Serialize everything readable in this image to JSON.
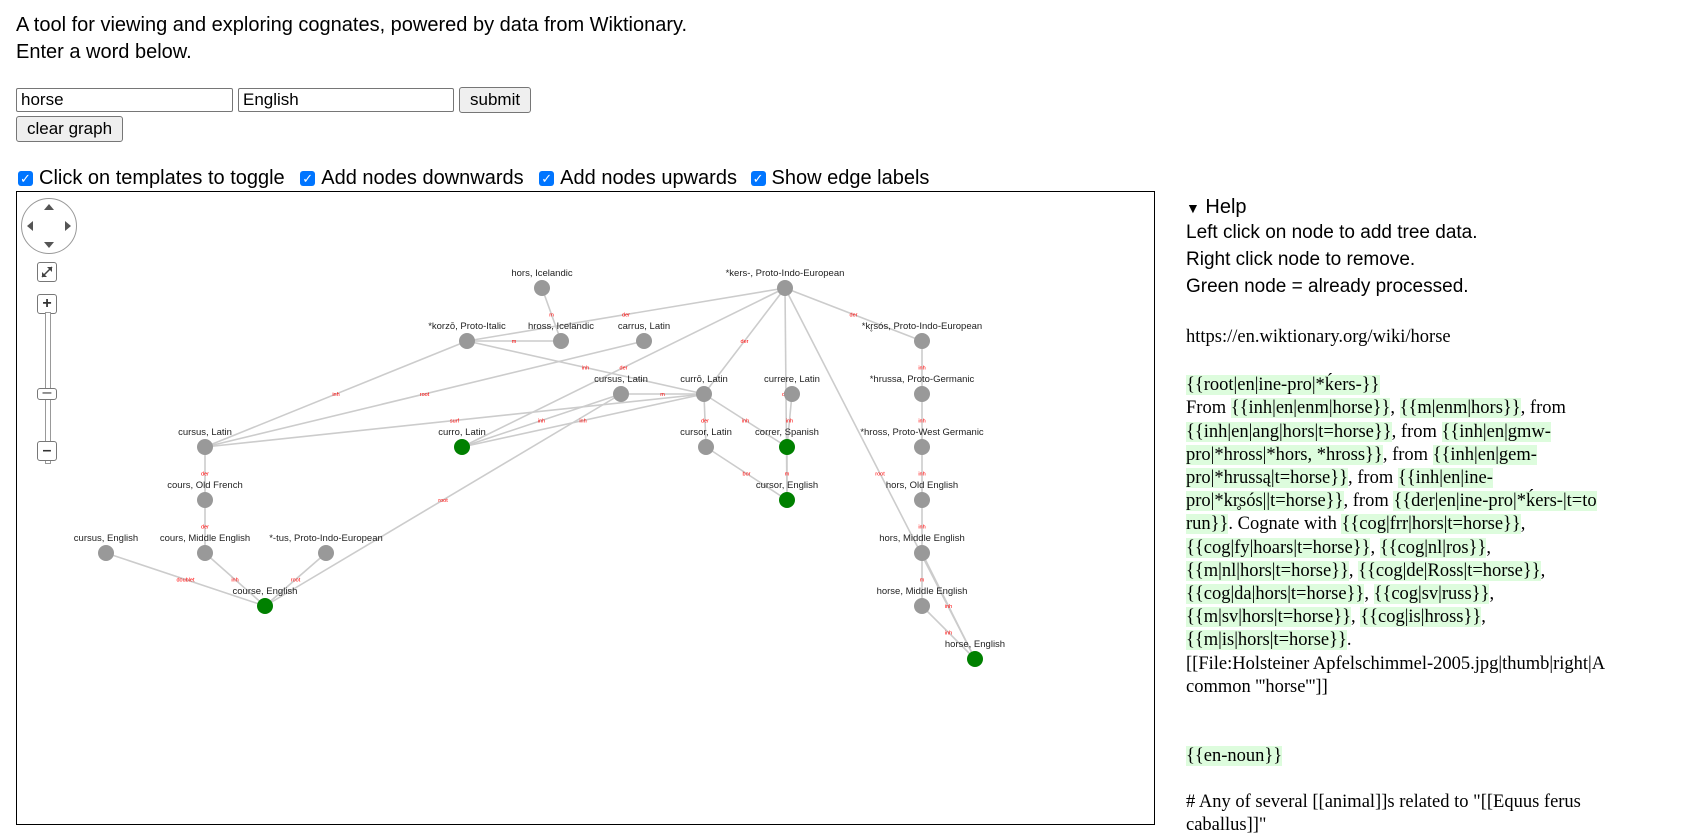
{
  "intro": {
    "line1": "A tool for viewing and exploring cognates, powered by data from Wiktionary.",
    "line2": "Enter a word below."
  },
  "form": {
    "word_value": "horse",
    "language_value": "English",
    "submit_label": "submit",
    "clear_label": "clear graph"
  },
  "options": [
    {
      "label": "Click on templates to toggle",
      "checked": true
    },
    {
      "label": "Add nodes downwards",
      "checked": true
    },
    {
      "label": "Add nodes upwards",
      "checked": true
    },
    {
      "label": "Show edge labels",
      "checked": true
    }
  ],
  "colors": {
    "processed": "#008000",
    "unprocessed": "#999999",
    "edge": "#cccccc",
    "edge_label": "#ff0000",
    "template_bg": "#ddfcdd",
    "checkbox": "#0075ff"
  },
  "graph": {
    "nodes": [
      {
        "label": "hors, Icelandic",
        "processed": false
      },
      {
        "label": "*kers-, Proto-Indo-European",
        "processed": false
      },
      {
        "label": "*korzō, Proto-Italic",
        "processed": false
      },
      {
        "label": "hross, Icelandic",
        "processed": false
      },
      {
        "label": "carrus, Latin",
        "processed": false
      },
      {
        "label": "*kr̥sós, Proto-Indo-European",
        "processed": false
      },
      {
        "label": "cursus, Latin",
        "processed": false
      },
      {
        "label": "currō, Latin",
        "processed": false
      },
      {
        "label": "currere, Latin",
        "processed": false
      },
      {
        "label": "*hrussa, Proto-Germanic",
        "processed": false
      },
      {
        "label": "cursus, Latin",
        "processed": false
      },
      {
        "label": "curro, Latin",
        "processed": true
      },
      {
        "label": "cursor, Latin",
        "processed": false
      },
      {
        "label": "correr, Spanish",
        "processed": true
      },
      {
        "label": "*hross, Proto-West Germanic",
        "processed": false
      },
      {
        "label": "cours, Old French",
        "processed": false
      },
      {
        "label": "cursor, English",
        "processed": true
      },
      {
        "label": "hors, Old English",
        "processed": false
      },
      {
        "label": "cursus, English",
        "processed": false
      },
      {
        "label": "cours, Middle English",
        "processed": false
      },
      {
        "label": "*-tus, Proto-Indo-European",
        "processed": false
      },
      {
        "label": "hors, Middle English",
        "processed": false
      },
      {
        "label": "course, English",
        "processed": true
      },
      {
        "label": "horse, Middle English",
        "processed": false
      },
      {
        "label": "horse, English",
        "processed": true
      }
    ],
    "edges": [
      {
        "from": 0,
        "to": 3,
        "label": "m"
      },
      {
        "from": 1,
        "to": 2,
        "label": "der"
      },
      {
        "from": 1,
        "to": 5,
        "label": "der"
      },
      {
        "from": 1,
        "to": 7,
        "label": "der"
      },
      {
        "from": 1,
        "to": 11,
        "label": "der"
      },
      {
        "from": 1,
        "to": 16,
        "label": "der"
      },
      {
        "from": 1,
        "to": 24,
        "label": "root"
      },
      {
        "from": 2,
        "to": 10,
        "label": "inh"
      },
      {
        "from": 2,
        "to": 7,
        "label": "inh"
      },
      {
        "from": 3,
        "to": 2,
        "label": "m"
      },
      {
        "from": 4,
        "to": 10,
        "label": "root"
      },
      {
        "from": 5,
        "to": 9,
        "label": "inh"
      },
      {
        "from": 6,
        "to": 11,
        "label": "inh"
      },
      {
        "from": 6,
        "to": 22,
        "label": "root"
      },
      {
        "from": 7,
        "to": 6,
        "label": "m"
      },
      {
        "from": 7,
        "to": 11,
        "label": "inh"
      },
      {
        "from": 7,
        "to": 12,
        "label": "der"
      },
      {
        "from": 7,
        "to": 13,
        "label": "inh"
      },
      {
        "from": 7,
        "to": 10,
        "label": "surf"
      },
      {
        "from": 8,
        "to": 13,
        "label": "inh"
      },
      {
        "from": 9,
        "to": 14,
        "label": "inh"
      },
      {
        "from": 10,
        "to": 15,
        "label": "der"
      },
      {
        "from": 12,
        "to": 16,
        "label": "bor"
      },
      {
        "from": 13,
        "to": 16,
        "label": "m"
      },
      {
        "from": 14,
        "to": 17,
        "label": "inh"
      },
      {
        "from": 15,
        "to": 19,
        "label": "der"
      },
      {
        "from": 17,
        "to": 21,
        "label": "inh"
      },
      {
        "from": 18,
        "to": 22,
        "label": "doublet"
      },
      {
        "from": 19,
        "to": 22,
        "label": "inh"
      },
      {
        "from": 20,
        "to": 22,
        "label": "root"
      },
      {
        "from": 21,
        "to": 23,
        "label": "m"
      },
      {
        "from": 21,
        "to": 24,
        "label": "inh"
      },
      {
        "from": 23,
        "to": 24,
        "label": "inh"
      }
    ]
  },
  "help": {
    "title": "Help",
    "line1": "Left click on node to add tree data.",
    "line2": "Right click node to remove.",
    "line3": "Green node = already processed.",
    "url": "https://en.wiktionary.org/wiki/horse"
  },
  "wiki": {
    "root_template": "{{root|en|ine-pro|*ḱers-}}",
    "t_from": "From ",
    "t1": "{{inh|en|enm|horse}}",
    "s1": ", ",
    "t2": "{{m|enm|hors}}",
    "s2": ", from ",
    "t3": "{{inh|en|ang|hors|t=horse}}",
    "s3": ", from ",
    "t4": "{{inh|en|gmw-pro|*hross|*hors, *hross}}",
    "s4": ", from ",
    "t5": "{{inh|en|gem-pro|*hrussą|t=horse}}",
    "s5": ", from ",
    "t6": "{{inh|en|ine-pro|*kr̥sós||t=horse}}",
    "s6": ", from ",
    "t7": "{{der|en|ine-pro|*ḱers-|t=to run}}",
    "s7": ". Cognate with ",
    "t8": "{{cog|frr|hors|t=horse}}",
    "s8": ", ",
    "t9": "{{cog|fy|hoars|t=horse}}",
    "s9": ", ",
    "t10": "{{cog|nl|ros}}",
    "s10": ", ",
    "t11": "{{m|nl|hors|t=horse}}",
    "s11": ", ",
    "t12": "{{cog|de|Ross|t=horse}}",
    "s12": ", ",
    "t13": "{{cog|da|hors|t=horse}}",
    "s13": ", ",
    "t14": "{{cog|sv|russ}}",
    "s14": ", ",
    "t15": "{{m|sv|hors|t=horse}}",
    "s15": ", ",
    "t16": "{{cog|is|hross}}",
    "s16": ", ",
    "t17": "{{m|is|hors|t=horse}}",
    "s17": ".",
    "file": "[[File:Holsteiner Apfelschimmel-2005.jpg|thumb|right|A common '''horse''']]",
    "noun_template": "{{en-noun}}",
    "definition": "# Any of several [[animal]]s related to \"[[Equus ferus caballus]]\""
  }
}
